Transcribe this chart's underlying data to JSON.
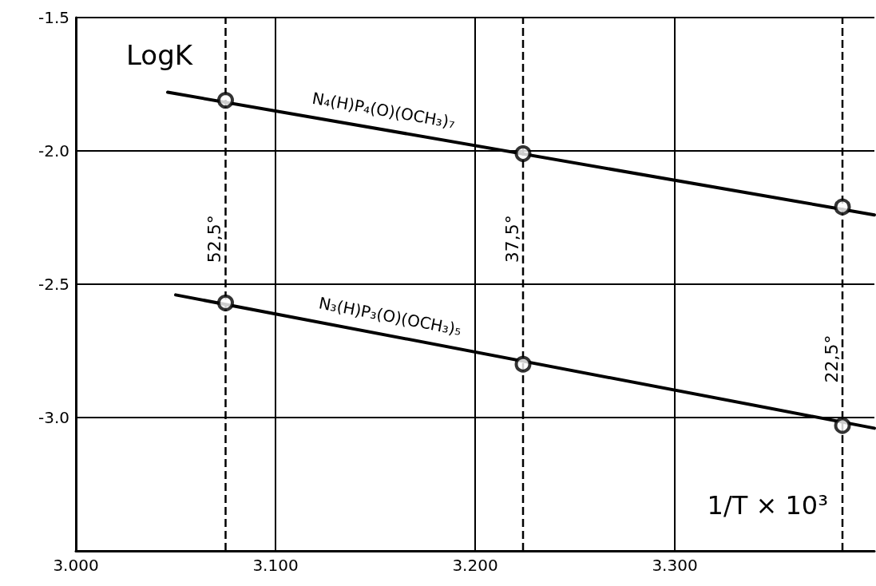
{
  "chart_data": {
    "type": "line",
    "xlabel": "1/T × 10³",
    "ylabel": "LogK",
    "xlim": [
      3.0,
      3.4
    ],
    "xticks": [
      {
        "value": 3.0,
        "label": "3.000"
      },
      {
        "value": 3.1,
        "label": "3.100"
      },
      {
        "value": 3.2,
        "label": "3.200"
      },
      {
        "value": 3.3,
        "label": "3.300"
      }
    ],
    "ylim": [
      -3.5,
      -1.5
    ],
    "yticks": [
      -1.5,
      {
        "value": -2.0,
        "label": "-2.0"
      },
      -2.5,
      {
        "value": -3.0,
        "label": "-3.0"
      }
    ],
    "grid": true,
    "series": [
      {
        "name": "N₄(H)P₄(O)(OCH₃)₇",
        "color": "#000000",
        "marker": "none",
        "line_style": "solid",
        "x": [
          3.046,
          3.4
        ],
        "values": [
          -1.78,
          -2.24
        ]
      },
      {
        "name": "N₃(H)P₃(O)(OCH₃)₅",
        "color": "#000000",
        "marker": "none",
        "line_style": "solid",
        "x": [
          3.05,
          3.4
        ],
        "values": [
          -2.54,
          -3.04
        ]
      },
      {
        "type": "scatter",
        "color": "#000000",
        "marker": "circle",
        "x": [
          3.075,
          3.224,
          3.384
        ],
        "values": [
          -1.81,
          -2.01,
          -2.21
        ]
      },
      {
        "type": "scatter",
        "color": "#000000",
        "marker": "circle",
        "x": [
          3.075,
          3.224,
          3.384
        ],
        "values": [
          -2.57,
          -2.8,
          -3.03
        ]
      }
    ],
    "ref_lines": [
      {
        "axis": "x",
        "value": 3.075,
        "line_style": "dashed",
        "color": "#000000"
      },
      {
        "axis": "x",
        "value": 3.224,
        "line_style": "dashed",
        "color": "#000000"
      },
      {
        "axis": "x",
        "value": 3.384,
        "line_style": "dashed",
        "color": "#000000"
      }
    ],
    "annotations": [
      {
        "text": "52,5°",
        "x": 3.075,
        "y": -2.33
      },
      {
        "text": "37,5°",
        "x": 3.224,
        "y": -2.33
      },
      {
        "text": "22,5°",
        "x": 3.384,
        "y": -2.78
      }
    ]
  }
}
